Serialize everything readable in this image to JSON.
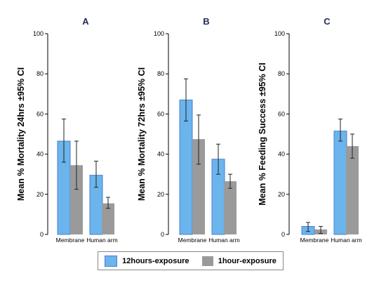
{
  "chart_data": [
    {
      "type": "bar",
      "title": "A",
      "ylabel": "Mean % Mortality 24hrs ±95% CI",
      "ylim": [
        0,
        100
      ],
      "yticks": [
        0,
        20,
        40,
        60,
        80,
        100
      ],
      "categories": [
        "Membrane",
        "Human arm"
      ],
      "series": [
        {
          "name": "12hours-exposure",
          "values": [
            46.5,
            29.5
          ],
          "ci_low": [
            36,
            23.5
          ],
          "ci_high": [
            57.5,
            36.5
          ]
        },
        {
          "name": "1hour-exposure",
          "values": [
            34.5,
            15.5
          ],
          "ci_low": [
            22.5,
            13
          ],
          "ci_high": [
            46.5,
            18.5
          ]
        }
      ]
    },
    {
      "type": "bar",
      "title": "B",
      "ylabel": "Mean % Mortality 72hrs ±95% CI",
      "ylim": [
        0,
        100
      ],
      "yticks": [
        0,
        20,
        40,
        60,
        80,
        100
      ],
      "categories": [
        "Membrane",
        "Human arm"
      ],
      "series": [
        {
          "name": "12hours-exposure",
          "values": [
            67,
            37.5
          ],
          "ci_low": [
            56.5,
            30
          ],
          "ci_high": [
            77.5,
            45
          ]
        },
        {
          "name": "1hour-exposure",
          "values": [
            47.5,
            26.5
          ],
          "ci_low": [
            35,
            23
          ],
          "ci_high": [
            59.5,
            30
          ]
        }
      ]
    },
    {
      "type": "bar",
      "title": "C",
      "ylabel": "Mean % Feeding Success ±95% CI",
      "ylim": [
        0,
        100
      ],
      "yticks": [
        0,
        20,
        40,
        60,
        80,
        100
      ],
      "categories": [
        "Membrane",
        "Human arm"
      ],
      "series": [
        {
          "name": "12hours-exposure",
          "values": [
            4,
            51.5
          ],
          "ci_low": [
            1.5,
            46.5
          ],
          "ci_high": [
            6,
            57.5
          ]
        },
        {
          "name": "1hour-exposure",
          "values": [
            2.5,
            44
          ],
          "ci_low": [
            0.5,
            38
          ],
          "ci_high": [
            4,
            50
          ]
        }
      ]
    }
  ],
  "legend": {
    "items": [
      {
        "label": "12hours-exposure",
        "color": "#6bb4ec"
      },
      {
        "label": "1hour-exposure",
        "color": "#9a9a9a"
      }
    ]
  },
  "colors": {
    "bar_edge": "#4a7fd4",
    "title": "#1f2a5a"
  }
}
